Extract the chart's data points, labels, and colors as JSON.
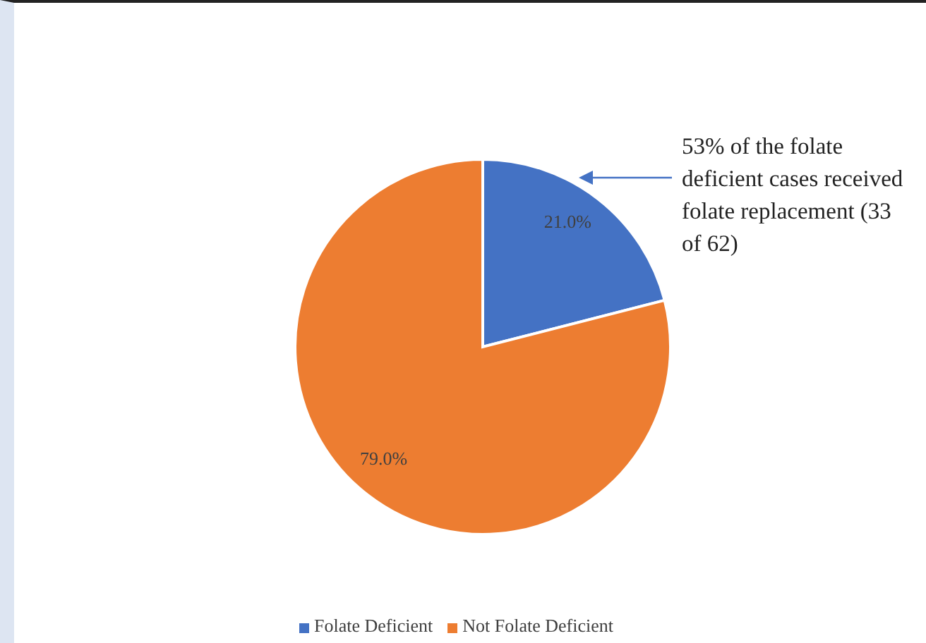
{
  "chart_data": {
    "type": "pie",
    "categories": [
      "Folate Deficient",
      "Not Folate Deficient"
    ],
    "values": [
      21,
      79
    ],
    "colors": [
      "#4472c4",
      "#ed7d31"
    ],
    "value_labels": [
      "21.0%",
      "79.0%"
    ],
    "legend": "bottom",
    "annotations": [
      "53% of the folate deficient cases received folate replacement (33 of 62)"
    ]
  }
}
